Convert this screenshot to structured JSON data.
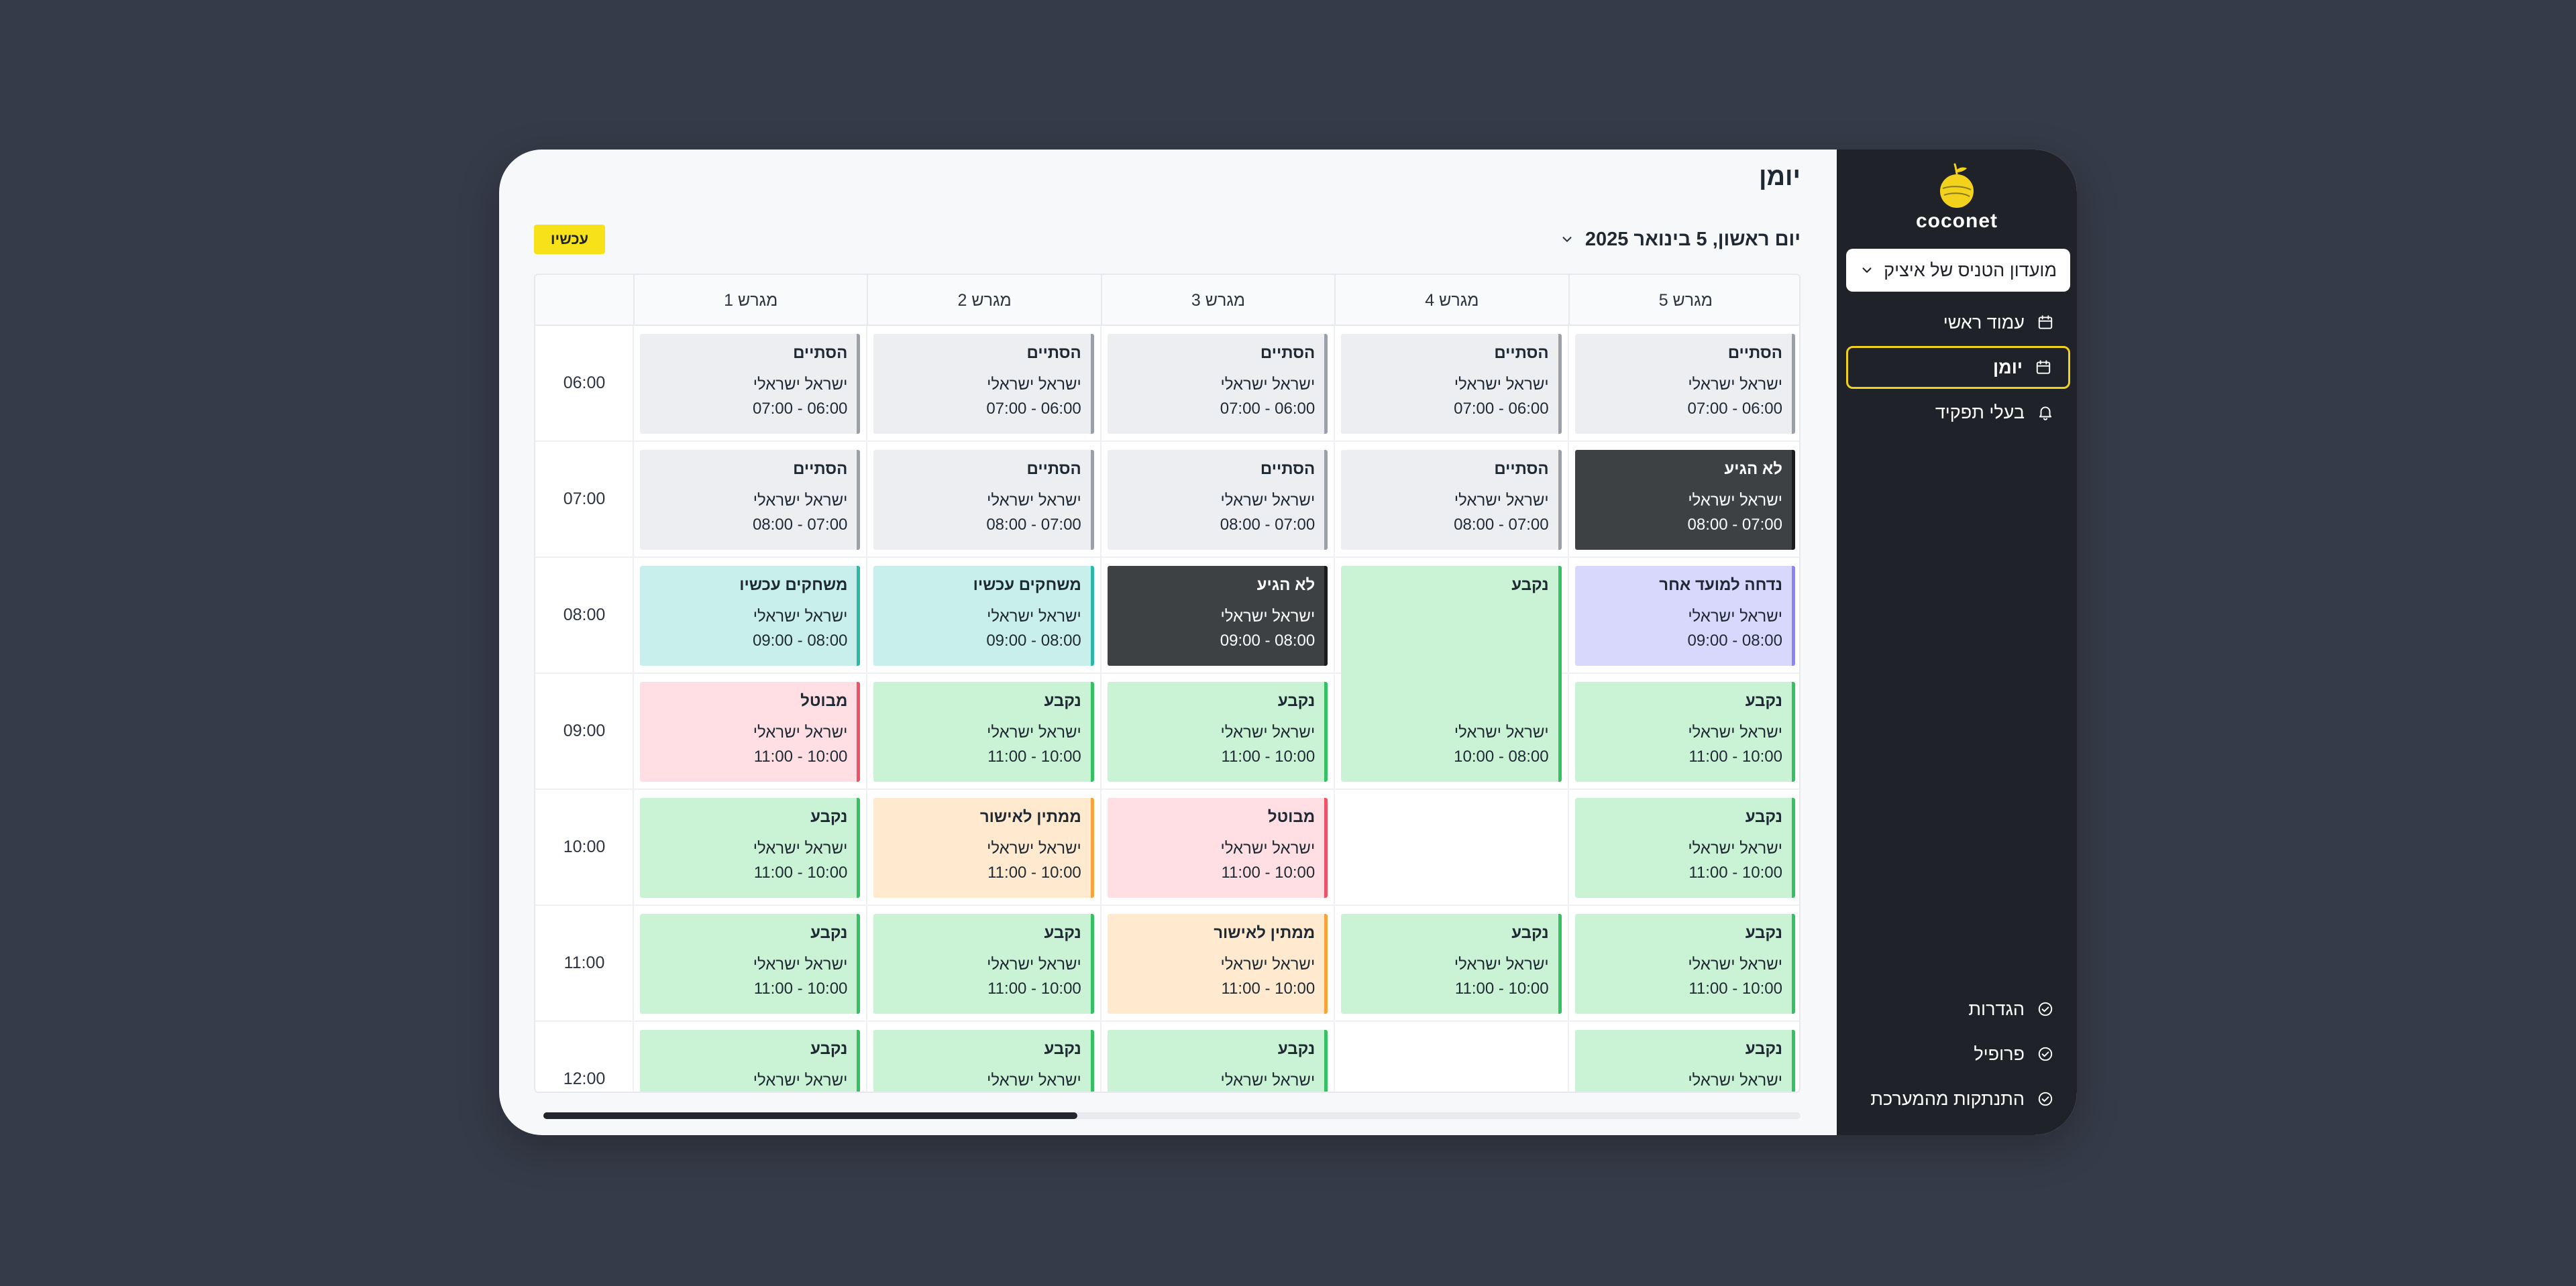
{
  "app": {
    "brand": "coconet"
  },
  "sidebar": {
    "club_select": "מועדון הטניס של איציק",
    "nav_top": [
      {
        "label": "עמוד ראשי",
        "icon": "calendar-icon",
        "active": false
      },
      {
        "label": "יומן",
        "icon": "calendar-icon",
        "active": true
      },
      {
        "label": "בעלי תפקיד",
        "icon": "bell-icon",
        "active": false
      }
    ],
    "nav_bottom": [
      {
        "label": "הגדרות",
        "icon": "check-circle-icon"
      },
      {
        "label": "פרופיל",
        "icon": "check-circle-icon"
      },
      {
        "label": "התנתקות מהמערכת",
        "icon": "check-circle-icon"
      }
    ]
  },
  "header": {
    "title": "יומן",
    "date": "יום ראשון, 5 בינואר 2025",
    "now_button": "עכשיו"
  },
  "colors": {
    "accent": "#f7e21a",
    "sidebar_bg": "#1f2228",
    "closed": "#eceef2",
    "no_show": "#3e4143",
    "booked": "#caf3d6",
    "playing": "#c8efec",
    "cancelled": "#ffdfe3",
    "pending": "#ffead0",
    "moved": "#d8d8fd"
  },
  "calendar": {
    "courts": [
      "מגרש 5",
      "מגרש 4",
      "מגרש 3",
      "מגרש 2",
      "מגרש 1"
    ],
    "times": [
      "06:00",
      "07:00",
      "08:00",
      "09:00",
      "10:00",
      "11:00",
      "12:00"
    ],
    "bookings": [
      {
        "court": 0,
        "row": 0,
        "span": 1,
        "status": "הסתיים",
        "kind": "closed",
        "name": "ישראל ישראלי",
        "time": "06:00 - 07:00"
      },
      {
        "court": 1,
        "row": 0,
        "span": 1,
        "status": "הסתיים",
        "kind": "closed",
        "name": "ישראל ישראלי",
        "time": "06:00 - 07:00"
      },
      {
        "court": 2,
        "row": 0,
        "span": 1,
        "status": "הסתיים",
        "kind": "closed",
        "name": "ישראל ישראלי",
        "time": "06:00 - 07:00"
      },
      {
        "court": 3,
        "row": 0,
        "span": 1,
        "status": "הסתיים",
        "kind": "closed",
        "name": "ישראל ישראלי",
        "time": "06:00 - 07:00"
      },
      {
        "court": 4,
        "row": 0,
        "span": 1,
        "status": "הסתיים",
        "kind": "closed",
        "name": "ישראל ישראלי",
        "time": "06:00 - 07:00"
      },
      {
        "court": 0,
        "row": 1,
        "span": 1,
        "status": "לא הגיע",
        "kind": "noshow",
        "name": "ישראל ישראלי",
        "time": "07:00 - 08:00"
      },
      {
        "court": 1,
        "row": 1,
        "span": 1,
        "status": "הסתיים",
        "kind": "closed",
        "name": "ישראל ישראלי",
        "time": "07:00 - 08:00"
      },
      {
        "court": 2,
        "row": 1,
        "span": 1,
        "status": "הסתיים",
        "kind": "closed",
        "name": "ישראל ישראלי",
        "time": "07:00 - 08:00"
      },
      {
        "court": 3,
        "row": 1,
        "span": 1,
        "status": "הסתיים",
        "kind": "closed",
        "name": "ישראל ישראלי",
        "time": "07:00 - 08:00"
      },
      {
        "court": 4,
        "row": 1,
        "span": 1,
        "status": "הסתיים",
        "kind": "closed",
        "name": "ישראל ישראלי",
        "time": "07:00 - 08:00"
      },
      {
        "court": 0,
        "row": 2,
        "span": 1,
        "status": "נדחה למועד אחר",
        "kind": "moved",
        "name": "ישראל ישראלי",
        "time": "08:00 - 09:00"
      },
      {
        "court": 1,
        "row": 2,
        "span": 2,
        "status": "נקבע",
        "kind": "booked",
        "name": "ישראל ישראלי",
        "time": "08:00 - 10:00"
      },
      {
        "court": 2,
        "row": 2,
        "span": 1,
        "status": "לא הגיע",
        "kind": "noshow",
        "name": "ישראל ישראלי",
        "time": "08:00 - 09:00"
      },
      {
        "court": 3,
        "row": 2,
        "span": 1,
        "status": "משחקים עכשיו",
        "kind": "playing",
        "name": "ישראל ישראלי",
        "time": "08:00 - 09:00"
      },
      {
        "court": 4,
        "row": 2,
        "span": 1,
        "status": "משחקים עכשיו",
        "kind": "playing",
        "name": "ישראל ישראלי",
        "time": "08:00 - 09:00"
      },
      {
        "court": 0,
        "row": 3,
        "span": 1,
        "status": "נקבע",
        "kind": "booked",
        "name": "ישראל ישראלי",
        "time": "10:00 - 11:00"
      },
      {
        "court": 2,
        "row": 3,
        "span": 1,
        "status": "נקבע",
        "kind": "booked",
        "name": "ישראל ישראלי",
        "time": "10:00 - 11:00"
      },
      {
        "court": 3,
        "row": 3,
        "span": 1,
        "status": "נקבע",
        "kind": "booked",
        "name": "ישראל ישראלי",
        "time": "10:00 - 11:00"
      },
      {
        "court": 4,
        "row": 3,
        "span": 1,
        "status": "מבוטל",
        "kind": "cancel",
        "name": "ישראל ישראלי",
        "time": "10:00 - 11:00"
      },
      {
        "court": 0,
        "row": 4,
        "span": 1,
        "status": "נקבע",
        "kind": "booked",
        "name": "ישראל ישראלי",
        "time": "10:00 - 11:00"
      },
      {
        "court": 2,
        "row": 4,
        "span": 1,
        "status": "מבוטל",
        "kind": "cancel",
        "name": "ישראל ישראלי",
        "time": "10:00 - 11:00"
      },
      {
        "court": 3,
        "row": 4,
        "span": 1,
        "status": "ממתין לאישור",
        "kind": "pending",
        "name": "ישראל ישראלי",
        "time": "10:00 - 11:00"
      },
      {
        "court": 4,
        "row": 4,
        "span": 1,
        "status": "נקבע",
        "kind": "booked",
        "name": "ישראל ישראלי",
        "time": "10:00 - 11:00"
      },
      {
        "court": 0,
        "row": 5,
        "span": 1,
        "status": "נקבע",
        "kind": "booked",
        "name": "ישראל ישראלי",
        "time": "10:00 - 11:00"
      },
      {
        "court": 1,
        "row": 5,
        "span": 1,
        "status": "נקבע",
        "kind": "booked",
        "name": "ישראל ישראלי",
        "time": "10:00 - 11:00"
      },
      {
        "court": 2,
        "row": 5,
        "span": 1,
        "status": "ממתין לאישור",
        "kind": "pending",
        "name": "ישראל ישראלי",
        "time": "10:00 - 11:00"
      },
      {
        "court": 3,
        "row": 5,
        "span": 1,
        "status": "נקבע",
        "kind": "booked",
        "name": "ישראל ישראלי",
        "time": "10:00 - 11:00"
      },
      {
        "court": 4,
        "row": 5,
        "span": 1,
        "status": "נקבע",
        "kind": "booked",
        "name": "ישראל ישראלי",
        "time": "10:00 - 11:00"
      },
      {
        "court": 0,
        "row": 6,
        "span": 1,
        "status": "נקבע",
        "kind": "booked",
        "name": "ישראל ישראלי",
        "time": ""
      },
      {
        "court": 2,
        "row": 6,
        "span": 1,
        "status": "נקבע",
        "kind": "booked",
        "name": "ישראל ישראלי",
        "time": ""
      },
      {
        "court": 3,
        "row": 6,
        "span": 1,
        "status": "נקבע",
        "kind": "booked",
        "name": "ישראל ישראלי",
        "time": ""
      },
      {
        "court": 4,
        "row": 6,
        "span": 1,
        "status": "נקבע",
        "kind": "booked",
        "name": "ישראל ישראלי",
        "time": ""
      }
    ]
  }
}
